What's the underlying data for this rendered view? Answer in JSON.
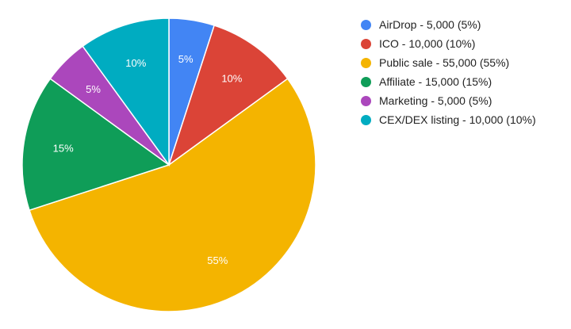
{
  "chart_data": {
    "type": "pie",
    "start_angle_deg": 0,
    "direction": "clockwise",
    "legend_position": "right",
    "slices": [
      {
        "name": "AirDrop",
        "value": 5000,
        "percent": 5,
        "color": "#4285f4",
        "slice_label": "5%",
        "legend_label": "AirDrop - 5,000 (5%)"
      },
      {
        "name": "ICO",
        "value": 10000,
        "percent": 10,
        "color": "#db4437",
        "slice_label": "10%",
        "legend_label": "ICO - 10,000 (10%)"
      },
      {
        "name": "Public sale",
        "value": 55000,
        "percent": 55,
        "color": "#f4b400",
        "slice_label": "55%",
        "legend_label": "Public sale - 55,000 (55%)"
      },
      {
        "name": "Affiliate",
        "value": 15000,
        "percent": 15,
        "color": "#0f9d58",
        "slice_label": "15%",
        "legend_label": "Affiliate - 15,000 (15%)"
      },
      {
        "name": "Marketing",
        "value": 5000,
        "percent": 5,
        "color": "#ab47bc",
        "slice_label": "5%",
        "legend_label": "Marketing - 5,000 (5%)"
      },
      {
        "name": "CEX/DEX listing",
        "value": 10000,
        "percent": 10,
        "color": "#00acc1",
        "slice_label": "10%",
        "legend_label": "CEX/DEX listing - 10,000 (10%)"
      }
    ]
  }
}
